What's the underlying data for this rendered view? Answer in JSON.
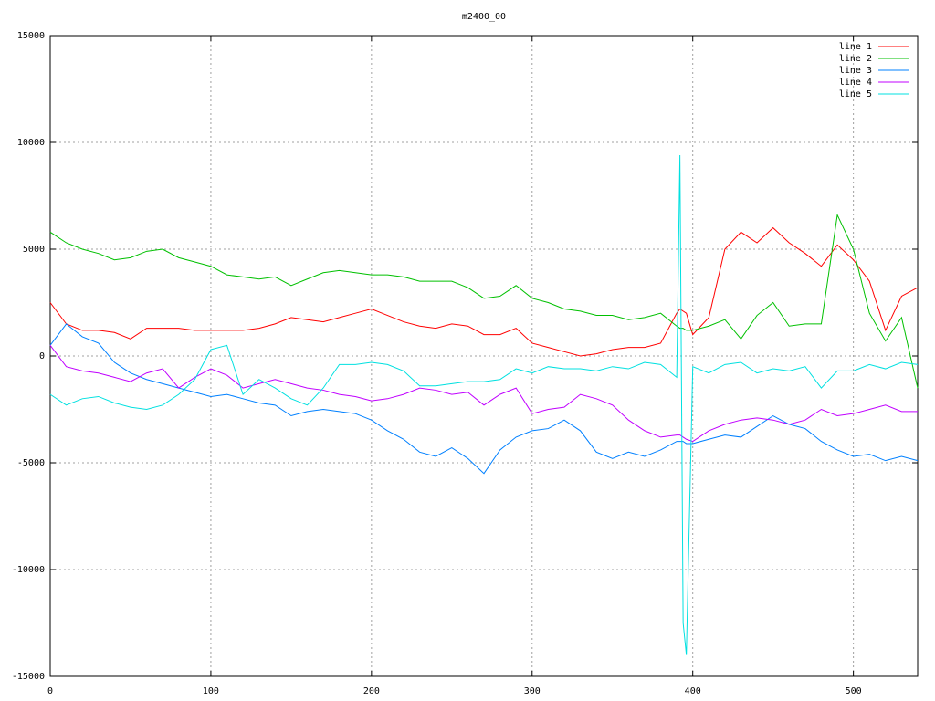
{
  "chart_data": {
    "type": "line",
    "title": "m2400_00",
    "x": [
      0,
      10,
      20,
      30,
      40,
      50,
      60,
      70,
      80,
      90,
      100,
      110,
      120,
      130,
      140,
      150,
      160,
      170,
      180,
      190,
      200,
      210,
      220,
      230,
      240,
      250,
      260,
      270,
      280,
      290,
      300,
      310,
      320,
      330,
      340,
      350,
      360,
      370,
      380,
      390,
      392,
      394,
      396,
      400,
      410,
      420,
      430,
      440,
      450,
      460,
      470,
      480,
      490,
      500,
      510,
      520,
      530,
      540
    ],
    "series": [
      {
        "name": "line 1",
        "color": "#ff0000",
        "values": [
          2500,
          1500,
          1200,
          1200,
          1100,
          800,
          1300,
          1300,
          1300,
          1200,
          1200,
          1200,
          1200,
          1300,
          1500,
          1800,
          1700,
          1600,
          1800,
          2000,
          2200,
          1900,
          1600,
          1400,
          1300,
          1500,
          1400,
          1000,
          1000,
          1300,
          600,
          400,
          200,
          0,
          100,
          300,
          400,
          400,
          600,
          2000,
          2200,
          2100,
          2000,
          1000,
          1800,
          5000,
          5800,
          5300,
          6000,
          5300,
          4800,
          4200,
          5200,
          4500,
          3500,
          1200,
          2800,
          3200
        ]
      },
      {
        "name": "line 2",
        "color": "#00c000",
        "values": [
          5800,
          5300,
          5000,
          4800,
          4500,
          4600,
          4900,
          5000,
          4600,
          4400,
          4200,
          3800,
          3700,
          3600,
          3700,
          3300,
          3600,
          3900,
          4000,
          3900,
          3800,
          3800,
          3700,
          3500,
          3500,
          3500,
          3200,
          2700,
          2800,
          3300,
          2700,
          2500,
          2200,
          2100,
          1900,
          1900,
          1700,
          1800,
          2000,
          1400,
          1300,
          1300,
          1200,
          1200,
          1400,
          1700,
          800,
          1900,
          2500,
          1400,
          1500,
          1500,
          6600,
          5000,
          2000,
          700,
          1800,
          -1500
        ]
      },
      {
        "name": "line 3",
        "color": "#0080ff",
        "values": [
          500,
          1500,
          900,
          600,
          -300,
          -800,
          -1100,
          -1300,
          -1500,
          -1700,
          -1900,
          -1800,
          -2000,
          -2200,
          -2300,
          -2800,
          -2600,
          -2500,
          -2600,
          -2700,
          -3000,
          -3500,
          -3900,
          -4500,
          -4700,
          -4300,
          -4800,
          -5500,
          -4400,
          -3800,
          -3500,
          -3400,
          -3000,
          -3500,
          -4500,
          -4800,
          -4500,
          -4700,
          -4400,
          -4000,
          -4000,
          -4000,
          -4100,
          -4100,
          -3900,
          -3700,
          -3800,
          -3300,
          -2800,
          -3200,
          -3400,
          -4000,
          -4400,
          -4700,
          -4600,
          -4900,
          -4700,
          -4900
        ]
      },
      {
        "name": "line 4",
        "color": "#c000ff",
        "values": [
          500,
          -500,
          -700,
          -800,
          -1000,
          -1200,
          -800,
          -600,
          -1500,
          -1000,
          -600,
          -900,
          -1500,
          -1300,
          -1100,
          -1300,
          -1500,
          -1600,
          -1800,
          -1900,
          -2100,
          -2000,
          -1800,
          -1500,
          -1600,
          -1800,
          -1700,
          -2300,
          -1800,
          -1500,
          -2700,
          -2500,
          -2400,
          -1800,
          -2000,
          -2300,
          -3000,
          -3500,
          -3800,
          -3700,
          -3700,
          -3800,
          -3900,
          -4000,
          -3500,
          -3200,
          -3000,
          -2900,
          -3000,
          -3200,
          -3000,
          -2500,
          -2800,
          -2700,
          -2500,
          -2300,
          -2600,
          -2600
        ]
      },
      {
        "name": "line 5",
        "color": "#00e0e0",
        "values": [
          -1800,
          -2300,
          -2000,
          -1900,
          -2200,
          -2400,
          -2500,
          -2300,
          -1800,
          -1100,
          300,
          500,
          -1800,
          -1100,
          -1500,
          -2000,
          -2300,
          -1500,
          -400,
          -400,
          -300,
          -400,
          -700,
          -1400,
          -1400,
          -1300,
          -1200,
          -1200,
          -1100,
          -600,
          -800,
          -500,
          -600,
          -600,
          -700,
          -500,
          -600,
          -300,
          -400,
          -1000,
          9400,
          -12500,
          -14000,
          -500,
          -800,
          -400,
          -300,
          -800,
          -600,
          -700,
          -500,
          -1500,
          -700,
          -700,
          -400,
          -600,
          -300,
          -400
        ]
      }
    ],
    "xlim": [
      0,
      540
    ],
    "ylim": [
      -15000,
      15000
    ],
    "xticks": [
      0,
      100,
      200,
      300,
      400,
      500
    ],
    "yticks": [
      -15000,
      -10000,
      -5000,
      0,
      5000,
      10000,
      15000
    ],
    "grid": true,
    "legend": "top-right"
  }
}
